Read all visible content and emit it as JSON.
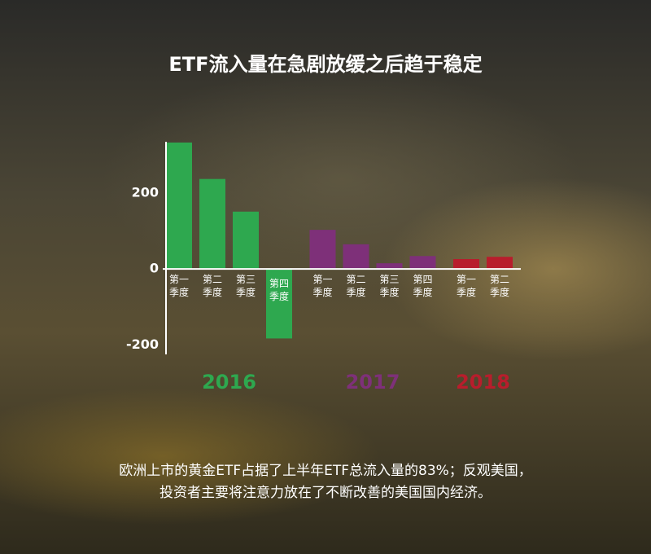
{
  "chart_data": {
    "type": "bar",
    "title": "ETF流入量在急剧放缓之后趋于稳定",
    "ylim": [
      -225,
      335
    ],
    "yticks": [
      -200,
      0,
      200
    ],
    "series": [
      {
        "name": "2016",
        "color": "#2ea84f",
        "categories": [
          "第一季度",
          "第二季度",
          "第三季度",
          "第四季度"
        ],
        "values": [
          333,
          237,
          151,
          -183
        ]
      },
      {
        "name": "2017",
        "color": "#7e3079",
        "categories": [
          "第一季度",
          "第二季度",
          "第三季度",
          "第四季度"
        ],
        "values": [
          103,
          65,
          15,
          34
        ]
      },
      {
        "name": "2018",
        "color": "#b81d2c",
        "categories": [
          "第一季度",
          "第二季度"
        ],
        "values": [
          26,
          32
        ]
      }
    ],
    "caption": [
      "欧洲上市的黄金ETF占据了上半年ETF总流入量的83%；反观美国，",
      "投资者主要将注意力放在了不断改善的美国国内经济。"
    ]
  }
}
